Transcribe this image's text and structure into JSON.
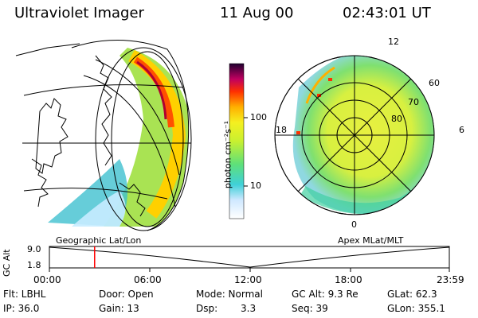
{
  "header": {
    "instrument": "Ultraviolet Imager",
    "date": "11 Aug 00",
    "time": "02:43:01 UT"
  },
  "colorbar": {
    "unit_label": "photon cm⁻²s⁻¹",
    "ticks": [
      {
        "label": "100",
        "value": 100
      },
      {
        "label": "10",
        "value": 10
      }
    ]
  },
  "left_map": {
    "caption": "Geographic Lat/Lon"
  },
  "right_map": {
    "caption": "Apex MLat/MLT",
    "lat_labels": [
      "60",
      "70",
      "80"
    ],
    "mlt_labels": [
      "12",
      "18",
      "6",
      "0"
    ]
  },
  "timeline": {
    "ylabel": "GC Alt",
    "y_ticks": [
      "9.0",
      "1.8"
    ],
    "x_ticks": [
      "00:00",
      "06:00",
      "12:00",
      "18:00",
      "23:59"
    ],
    "current_time_fraction": 0.1131
  },
  "info": {
    "flt": "Flt: LBHL",
    "ip": "IP: 36.0",
    "door": "Door: Open",
    "gain": "Gain: 13",
    "mode": "Mode: Normal",
    "dsp_label": "Dsp:",
    "dsp_value": "3.3",
    "gcalt": "GC Alt: 9.3 Re",
    "seq": "Seq: 39",
    "glat": "GLat: 62.3",
    "glon": "GLon: 355.1"
  },
  "colors": {
    "timeline_marker": "#ff0000"
  }
}
